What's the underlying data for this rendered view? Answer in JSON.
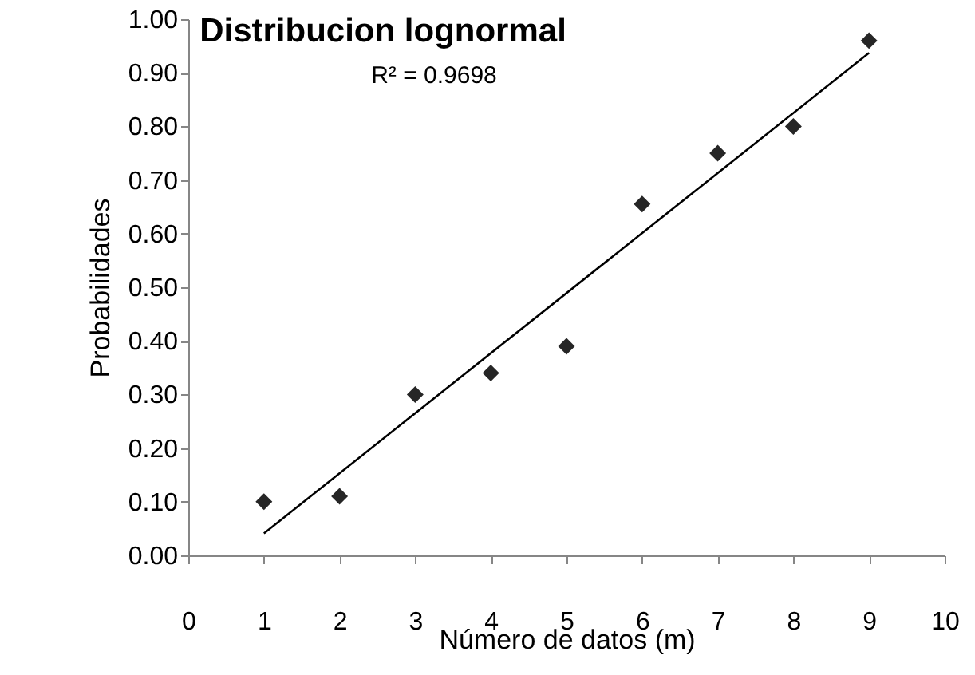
{
  "chart_data": {
    "type": "scatter",
    "title": "Distribucion lognormal",
    "xlabel": "Número de datos (m)",
    "ylabel": "Probabilidades",
    "annotations": [
      "R² = 0.9698"
    ],
    "x": [
      1,
      2,
      3,
      4,
      5,
      6,
      7,
      8,
      9
    ],
    "series": [
      {
        "color": "#262626",
        "marker": "diamond",
        "values": [
          0.1,
          0.11,
          0.3,
          0.34,
          0.39,
          0.655,
          0.75,
          0.8,
          0.96
        ]
      },
      {
        "type": "line",
        "color": "#000000",
        "marker": "none",
        "x": [
          1,
          9
        ],
        "values": [
          0.041,
          0.937
        ]
      }
    ],
    "xlim": [
      0,
      10
    ],
    "xticks": [
      0,
      1,
      2,
      3,
      4,
      5,
      6,
      7,
      8,
      9,
      10
    ],
    "ylim": [
      0,
      1
    ],
    "yticks": [
      {
        "value": 0,
        "label": "0.00"
      },
      {
        "value": 0.1,
        "label": "0.10"
      },
      {
        "value": 0.2,
        "label": "0.20"
      },
      {
        "value": 0.3,
        "label": "0.30"
      },
      {
        "value": 0.4,
        "label": "0.40"
      },
      {
        "value": 0.5,
        "label": "0.50"
      },
      {
        "value": 0.6,
        "label": "0.60"
      },
      {
        "value": 0.7,
        "label": "0.70"
      },
      {
        "value": 0.8,
        "label": "0.80"
      },
      {
        "value": 0.9,
        "label": "0.90"
      },
      {
        "value": 1,
        "label": "1.00"
      }
    ],
    "grid": false
  }
}
